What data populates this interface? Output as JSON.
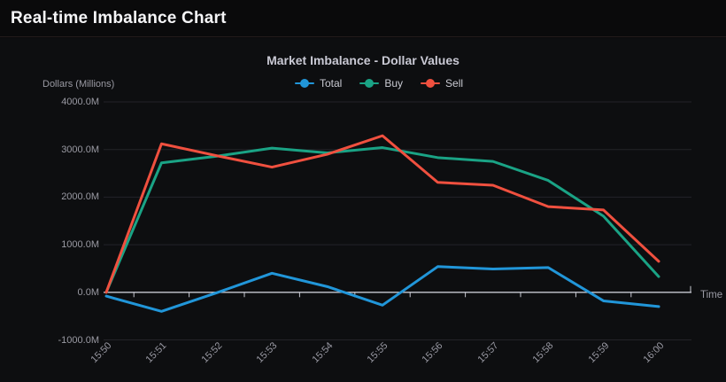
{
  "header": {
    "title": "Real-time Imbalance Chart"
  },
  "chart_data": {
    "type": "line",
    "title": "Market Imbalance - Dollar Values",
    "y_axis_name": "Dollars (Millions)",
    "x_axis_name": "Time",
    "categories": [
      "15:50",
      "15:51",
      "15:52",
      "15:53",
      "15:54",
      "15:55",
      "15:56",
      "15:57",
      "15:58",
      "15:59",
      "16:00"
    ],
    "series": [
      {
        "name": "Total",
        "color": "#2196d9",
        "values": [
          -80,
          -400,
          -10,
          400,
          120,
          -270,
          540,
          490,
          520,
          -180,
          -300
        ]
      },
      {
        "name": "Buy",
        "color": "#1aa385",
        "values": [
          0,
          2720,
          2860,
          3030,
          2930,
          3040,
          2830,
          2750,
          2350,
          1600,
          330
        ]
      },
      {
        "name": "Sell",
        "color": "#f0503f",
        "values": [
          0,
          3120,
          2870,
          2630,
          2900,
          3290,
          2310,
          2250,
          1800,
          1730,
          650
        ]
      }
    ],
    "y_ticks": [
      {
        "value": 4000,
        "label": "4000.0M"
      },
      {
        "value": 3000,
        "label": "3000.0M"
      },
      {
        "value": 2000,
        "label": "2000.0M"
      },
      {
        "value": 1000,
        "label": "1000.0M"
      },
      {
        "value": 0,
        "label": "0.0M"
      },
      {
        "value": -1000,
        "label": "-1000.0M"
      }
    ],
    "ylim": [
      -1000,
      4000
    ],
    "grid": true,
    "legend_position": "top",
    "colors": {
      "background": "#0d0e10",
      "grid_line": "#232329",
      "axis_line": "#c8c9d2",
      "tick_text": "#9a9aa3",
      "title_text": "#c9c9d4"
    }
  }
}
